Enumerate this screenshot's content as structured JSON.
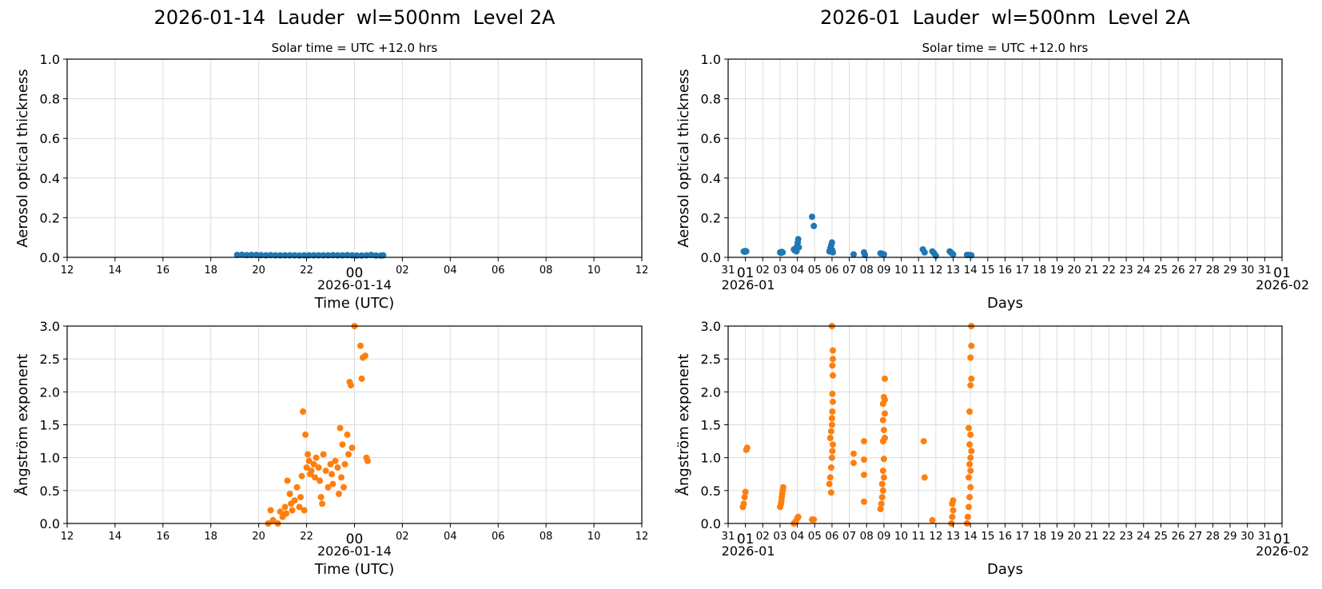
{
  "figure": {
    "left_title": "2026-01-14  Lauder  wl=500nm  Level 2A",
    "right_title": "2026-01  Lauder  wl=500nm  Level 2A",
    "left_subtitle": "Solar time = UTC +12.0 hrs",
    "right_subtitle": "Solar time = UTC +12.0 hrs"
  },
  "colors": {
    "aod": "#1f77b4",
    "angstrom": "#ff7f0e",
    "grid": "#dcdcdc"
  },
  "chart_data": [
    {
      "id": "aod_daily",
      "type": "scatter",
      "title": "2026-01-14  Lauder  wl=500nm  Level 2A",
      "subtitle": "Solar time = UTC +12.0 hrs",
      "xlabel": "Time (UTC)",
      "xdate_label": "2026-01-14",
      "ylabel": "Aerosol optical thickness",
      "xticks": [
        "12",
        "14",
        "16",
        "18",
        "20",
        "22",
        "00",
        "02",
        "04",
        "06",
        "08",
        "10",
        "12"
      ],
      "xlim_hours": [
        12,
        36
      ],
      "ylim": [
        0,
        1.0
      ],
      "yticks": [
        "0.0",
        "0.2",
        "0.4",
        "0.6",
        "0.8",
        "1.0"
      ],
      "grid": true,
      "color": "#1f77b4",
      "points_hours_since_prev_day": [
        [
          19.1,
          0.012
        ],
        [
          19.3,
          0.013
        ],
        [
          19.5,
          0.011
        ],
        [
          19.7,
          0.012
        ],
        [
          19.9,
          0.012
        ],
        [
          20.1,
          0.011
        ],
        [
          20.3,
          0.01
        ],
        [
          20.5,
          0.011
        ],
        [
          20.7,
          0.01
        ],
        [
          20.9,
          0.01
        ],
        [
          21.1,
          0.01
        ],
        [
          21.3,
          0.01
        ],
        [
          21.5,
          0.01
        ],
        [
          21.7,
          0.009
        ],
        [
          21.9,
          0.01
        ],
        [
          22.1,
          0.01
        ],
        [
          22.3,
          0.01
        ],
        [
          22.5,
          0.01
        ],
        [
          22.7,
          0.01
        ],
        [
          22.9,
          0.01
        ],
        [
          23.1,
          0.011
        ],
        [
          23.3,
          0.01
        ],
        [
          23.5,
          0.01
        ],
        [
          23.7,
          0.011
        ],
        [
          23.9,
          0.01
        ],
        [
          24.1,
          0.009
        ],
        [
          24.3,
          0.009
        ],
        [
          24.5,
          0.01
        ],
        [
          24.7,
          0.012
        ],
        [
          24.9,
          0.009
        ],
        [
          25.1,
          0.009
        ],
        [
          25.2,
          0.01
        ]
      ]
    },
    {
      "id": "aod_monthly",
      "type": "scatter",
      "title": "2026-01  Lauder  wl=500nm  Level 2A",
      "subtitle": "Solar time = UTC +12.0 hrs",
      "xlabel": "Days",
      "xdate_start": "2026-01",
      "xdate_end": "2026-02",
      "ylabel": "Aerosol optical thickness",
      "xticks": [
        "31",
        "01",
        "02",
        "03",
        "04",
        "05",
        "06",
        "07",
        "08",
        "09",
        "10",
        "11",
        "12",
        "13",
        "14",
        "15",
        "16",
        "17",
        "18",
        "19",
        "20",
        "21",
        "22",
        "23",
        "24",
        "25",
        "26",
        "27",
        "28",
        "29",
        "30",
        "31",
        "01"
      ],
      "ylim": [
        0,
        1.0
      ],
      "yticks": [
        "0.0",
        "0.2",
        "0.4",
        "0.6",
        "0.8",
        "1.0"
      ],
      "grid": true,
      "color": "#1f77b4",
      "points_day": [
        [
          0.9,
          0.03
        ],
        [
          0.95,
          0.028
        ],
        [
          1.0,
          0.032
        ],
        [
          1.05,
          0.03
        ],
        [
          3.0,
          0.025
        ],
        [
          3.05,
          0.022
        ],
        [
          3.1,
          0.028
        ],
        [
          3.15,
          0.025
        ],
        [
          3.8,
          0.04
        ],
        [
          3.85,
          0.035
        ],
        [
          3.9,
          0.045
        ],
        [
          3.95,
          0.03
        ],
        [
          4.0,
          0.06
        ],
        [
          4.02,
          0.075
        ],
        [
          4.05,
          0.092
        ],
        [
          4.08,
          0.05
        ],
        [
          4.85,
          0.205
        ],
        [
          4.95,
          0.158
        ],
        [
          5.85,
          0.03
        ],
        [
          5.9,
          0.045
        ],
        [
          5.95,
          0.06
        ],
        [
          6.0,
          0.075
        ],
        [
          6.02,
          0.035
        ],
        [
          6.05,
          0.025
        ],
        [
          7.25,
          0.015
        ],
        [
          7.85,
          0.025
        ],
        [
          7.9,
          0.012
        ],
        [
          8.8,
          0.02
        ],
        [
          8.9,
          0.018
        ],
        [
          9.0,
          0.015
        ],
        [
          11.25,
          0.04
        ],
        [
          11.35,
          0.025
        ],
        [
          11.8,
          0.03
        ],
        [
          11.9,
          0.02
        ],
        [
          12.0,
          0.008
        ],
        [
          12.8,
          0.03
        ],
        [
          12.9,
          0.022
        ],
        [
          13.0,
          0.015
        ],
        [
          13.8,
          0.012
        ],
        [
          13.95,
          0.012
        ],
        [
          14.05,
          0.01
        ]
      ]
    },
    {
      "id": "angstrom_daily",
      "type": "scatter",
      "xlabel": "Time (UTC)",
      "xdate_label": "2026-01-14",
      "ylabel": "Ångström exponent",
      "xticks": [
        "12",
        "14",
        "16",
        "18",
        "20",
        "22",
        "00",
        "02",
        "04",
        "06",
        "08",
        "10",
        "12"
      ],
      "xlim_hours": [
        12,
        36
      ],
      "ylim": [
        0,
        3.0
      ],
      "yticks": [
        "0.0",
        "0.5",
        "1.0",
        "1.5",
        "2.0",
        "2.5",
        "3.0"
      ],
      "grid": true,
      "color": "#ff7f0e",
      "points_hours_since_prev_day": [
        [
          20.4,
          0.0
        ],
        [
          20.5,
          0.2
        ],
        [
          20.6,
          0.05
        ],
        [
          20.8,
          0.0
        ],
        [
          20.9,
          0.18
        ],
        [
          21.0,
          0.1
        ],
        [
          21.1,
          0.25
        ],
        [
          21.15,
          0.15
        ],
        [
          21.2,
          0.65
        ],
        [
          21.3,
          0.45
        ],
        [
          21.35,
          0.3
        ],
        [
          21.4,
          0.2
        ],
        [
          21.5,
          0.35
        ],
        [
          21.6,
          0.55
        ],
        [
          21.7,
          0.25
        ],
        [
          21.75,
          0.4
        ],
        [
          21.8,
          0.72
        ],
        [
          21.85,
          1.7
        ],
        [
          21.9,
          0.2
        ],
        [
          21.95,
          1.35
        ],
        [
          22.0,
          0.85
        ],
        [
          22.05,
          1.05
        ],
        [
          22.1,
          0.95
        ],
        [
          22.15,
          0.75
        ],
        [
          22.2,
          0.8
        ],
        [
          22.3,
          0.9
        ],
        [
          22.35,
          0.7
        ],
        [
          22.4,
          1.0
        ],
        [
          22.5,
          0.85
        ],
        [
          22.55,
          0.65
        ],
        [
          22.6,
          0.4
        ],
        [
          22.65,
          0.3
        ],
        [
          22.7,
          1.05
        ],
        [
          22.8,
          0.8
        ],
        [
          22.9,
          0.55
        ],
        [
          23.0,
          0.9
        ],
        [
          23.05,
          0.75
        ],
        [
          23.1,
          0.6
        ],
        [
          23.2,
          0.95
        ],
        [
          23.3,
          0.85
        ],
        [
          23.35,
          0.45
        ],
        [
          23.4,
          1.45
        ],
        [
          23.45,
          0.7
        ],
        [
          23.5,
          1.2
        ],
        [
          23.55,
          0.55
        ],
        [
          23.6,
          0.9
        ],
        [
          23.7,
          1.35
        ],
        [
          23.75,
          1.05
        ],
        [
          23.8,
          2.15
        ],
        [
          23.85,
          2.1
        ],
        [
          23.9,
          1.15
        ],
        [
          24.0,
          3.0
        ],
        [
          24.25,
          2.7
        ],
        [
          24.3,
          2.2
        ],
        [
          24.35,
          2.52
        ],
        [
          24.45,
          2.55
        ],
        [
          24.5,
          1.0
        ],
        [
          24.55,
          0.95
        ]
      ]
    },
    {
      "id": "angstrom_monthly",
      "type": "scatter",
      "xlabel": "Days",
      "xdate_start": "2026-01",
      "xdate_end": "2026-02",
      "ylabel": "Ångström exponent",
      "xticks": [
        "31",
        "01",
        "02",
        "03",
        "04",
        "05",
        "06",
        "07",
        "08",
        "09",
        "10",
        "11",
        "12",
        "13",
        "14",
        "15",
        "16",
        "17",
        "18",
        "19",
        "20",
        "21",
        "22",
        "23",
        "24",
        "25",
        "26",
        "27",
        "28",
        "29",
        "30",
        "31",
        "01"
      ],
      "ylim": [
        0,
        3.0
      ],
      "yticks": [
        "0.0",
        "0.5",
        "1.0",
        "1.5",
        "2.0",
        "2.5",
        "3.0"
      ],
      "grid": true,
      "color": "#ff7f0e",
      "points_day": [
        [
          0.85,
          0.25
        ],
        [
          0.9,
          0.3
        ],
        [
          0.95,
          0.4
        ],
        [
          1.0,
          0.48
        ],
        [
          1.05,
          1.12
        ],
        [
          1.1,
          1.15
        ],
        [
          3.0,
          0.25
        ],
        [
          3.05,
          0.3
        ],
        [
          3.08,
          0.35
        ],
        [
          3.1,
          0.4
        ],
        [
          3.12,
          0.45
        ],
        [
          3.15,
          0.5
        ],
        [
          3.18,
          0.55
        ],
        [
          3.8,
          0.0
        ],
        [
          3.9,
          0.03
        ],
        [
          4.0,
          0.08
        ],
        [
          4.05,
          0.1
        ],
        [
          4.85,
          0.06
        ],
        [
          4.95,
          0.06
        ],
        [
          5.85,
          0.6
        ],
        [
          5.9,
          0.7
        ],
        [
          5.95,
          0.85
        ],
        [
          6.0,
          1.0
        ],
        [
          6.02,
          1.1
        ],
        [
          6.05,
          1.2
        ],
        [
          5.9,
          1.3
        ],
        [
          5.95,
          1.4
        ],
        [
          6.0,
          1.5
        ],
        [
          6.0,
          1.6
        ],
        [
          6.02,
          1.7
        ],
        [
          6.05,
          1.85
        ],
        [
          6.02,
          1.97
        ],
        [
          6.05,
          2.25
        ],
        [
          6.02,
          2.4
        ],
        [
          6.05,
          2.5
        ],
        [
          6.05,
          2.63
        ],
        [
          6.0,
          3.0
        ],
        [
          5.95,
          0.47
        ],
        [
          7.25,
          1.06
        ],
        [
          7.25,
          0.92
        ],
        [
          7.85,
          1.25
        ],
        [
          7.85,
          0.97
        ],
        [
          7.85,
          0.74
        ],
        [
          7.85,
          0.33
        ],
        [
          8.8,
          0.22
        ],
        [
          8.85,
          0.3
        ],
        [
          8.9,
          0.4
        ],
        [
          8.95,
          0.5
        ],
        [
          8.9,
          0.6
        ],
        [
          9.0,
          0.7
        ],
        [
          8.95,
          0.8
        ],
        [
          9.0,
          0.98
        ],
        [
          8.95,
          1.25
        ],
        [
          9.05,
          1.3
        ],
        [
          9.0,
          1.42
        ],
        [
          8.95,
          1.57
        ],
        [
          9.05,
          1.67
        ],
        [
          8.95,
          1.82
        ],
        [
          9.05,
          1.88
        ],
        [
          9.0,
          1.92
        ],
        [
          9.05,
          2.2
        ],
        [
          11.3,
          1.25
        ],
        [
          11.35,
          0.7
        ],
        [
          11.8,
          0.05
        ],
        [
          12.9,
          0.0
        ],
        [
          12.95,
          0.1
        ],
        [
          13.0,
          0.2
        ],
        [
          12.95,
          0.3
        ],
        [
          13.0,
          0.35
        ],
        [
          13.8,
          0.0
        ],
        [
          13.85,
          0.1
        ],
        [
          13.9,
          0.25
        ],
        [
          13.95,
          0.4
        ],
        [
          14.0,
          0.55
        ],
        [
          13.9,
          0.7
        ],
        [
          14.0,
          0.8
        ],
        [
          13.95,
          0.9
        ],
        [
          14.0,
          1.0
        ],
        [
          14.05,
          1.1
        ],
        [
          13.95,
          1.2
        ],
        [
          14.0,
          1.35
        ],
        [
          13.9,
          1.45
        ],
        [
          13.95,
          1.7
        ],
        [
          14.0,
          2.1
        ],
        [
          14.05,
          2.2
        ],
        [
          14.0,
          2.52
        ],
        [
          14.05,
          2.7
        ],
        [
          14.05,
          3.0
        ]
      ]
    }
  ]
}
